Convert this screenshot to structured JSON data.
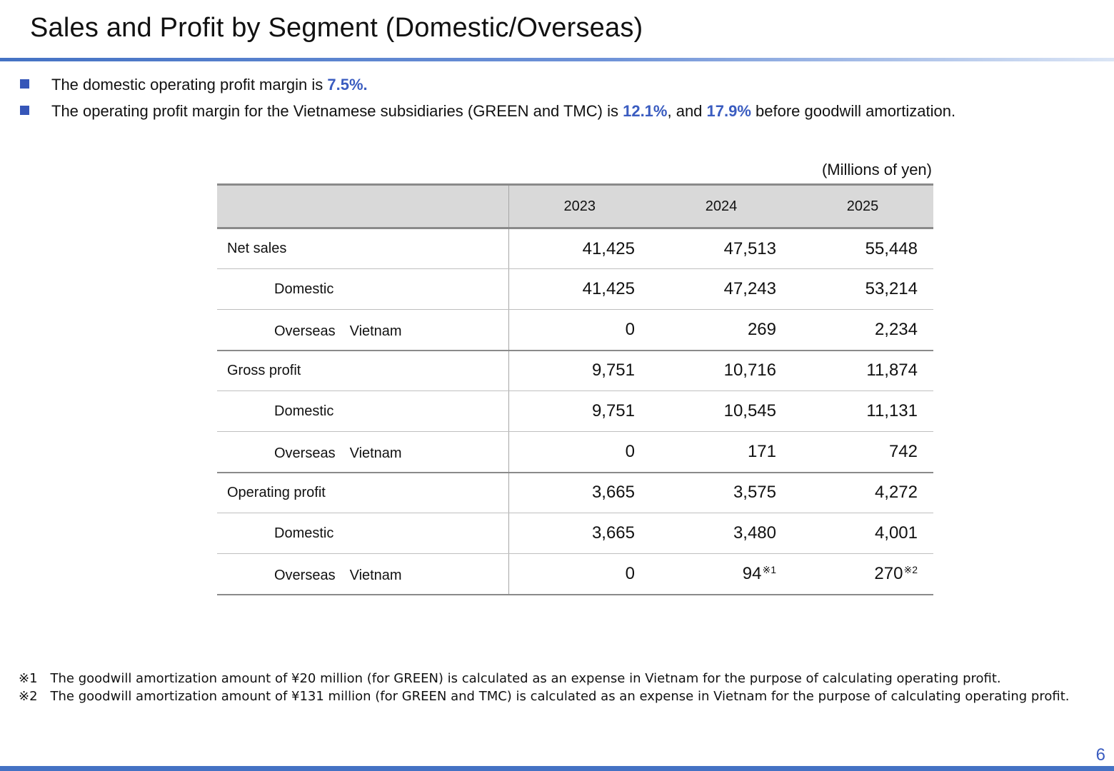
{
  "title": "Sales and Profit by Segment (Domestic/Overseas)",
  "bullets": [
    {
      "pre": "The domestic operating profit margin is ",
      "h1": "7.5%.",
      "mid": "",
      "h2": "",
      "post": ""
    },
    {
      "pre": "The operating profit margin for the Vietnamese subsidiaries (GREEN and TMC) is ",
      "h1": "12.1%",
      "mid": ", and ",
      "h2": "17.9%",
      "post": " before goodwill amortization."
    }
  ],
  "unit": "(Millions of yen)",
  "table": {
    "headers": [
      "",
      "2023",
      "2024",
      "2025"
    ],
    "rows": [
      {
        "label": "Net sales",
        "values": [
          "41,425",
          "47,513",
          "55,448"
        ]
      },
      {
        "label": "Domestic",
        "values": [
          "41,425",
          "47,243",
          "53,214"
        ]
      },
      {
        "label": "Overseas　Vietnam",
        "values": [
          "0",
          "269",
          "2,234"
        ]
      },
      {
        "label": "Gross profit",
        "values": [
          "9,751",
          "10,716",
          "11,874"
        ]
      },
      {
        "label": "Domestic",
        "values": [
          "9,751",
          "10,545",
          "11,131"
        ]
      },
      {
        "label": "Overseas　Vietnam",
        "values": [
          "0",
          "171",
          "742"
        ]
      },
      {
        "label": "Operating profit",
        "values": [
          "3,665",
          "3,575",
          "4,272"
        ]
      },
      {
        "label": "Domestic",
        "values": [
          "3,665",
          "3,480",
          "4,001"
        ]
      },
      {
        "label": "Overseas　Vietnam",
        "values": [
          "0",
          "94",
          "270"
        ],
        "notes": [
          "",
          "※1",
          "※2"
        ]
      }
    ]
  },
  "notes": [
    "※1　The goodwill amortization amount of ¥20 million (for GREEN) is calculated as an expense in Vietnam for the purpose of calculating operating profit.",
    "※2　The goodwill amortization amount of ¥131 million (for GREEN and TMC) is calculated as an expense in Vietnam for the purpose of calculating operating profit."
  ],
  "page_number": "6",
  "colors": {
    "accent": "#3a5cc0",
    "rule": "#4472c4",
    "header_bg": "#d9d9d9"
  }
}
